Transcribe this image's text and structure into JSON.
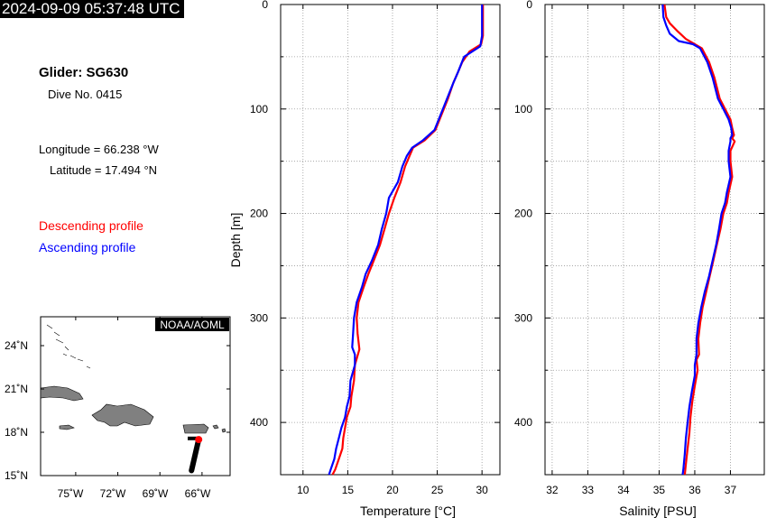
{
  "header": {
    "timestamp": "2024-09-09 05:37:48 UTC"
  },
  "info": {
    "glider": "Glider: SG630",
    "dive": "Dive No. 0415",
    "longitude": "Longitude = 66.238 °W",
    "latitude": "Latitude = 17.494 °N"
  },
  "legend": {
    "descending": "Descending profile",
    "ascending": "Ascending profile",
    "descending_color": "#ff0000",
    "ascending_color": "#0000ff"
  },
  "map": {
    "badge": "NOAA/AOML",
    "lat_labels": [
      "24˚N",
      "21˚N",
      "18˚N",
      "15˚N"
    ],
    "lon_labels": [
      "75˚W",
      "72˚W",
      "69˚W",
      "66˚W"
    ],
    "lat_values": [
      24,
      21,
      18,
      15
    ],
    "lon_values": [
      -75,
      -72,
      -69,
      -66
    ],
    "extent": {
      "lon": [
        -77.5,
        -64
      ],
      "lat": [
        15,
        26
      ]
    },
    "glider_position": {
      "lon": -66.238,
      "lat": 17.494
    },
    "track": [
      {
        "lon": -66.25,
        "lat": 17.45
      },
      {
        "lon": -66.75,
        "lat": 15.35
      }
    ],
    "land_color": "#808080"
  },
  "chart_data": [
    {
      "type": "line",
      "xlabel": "Temperature [°C]",
      "ylabel": "Depth [m]",
      "xlim": [
        7.5,
        32
      ],
      "ylim": [
        450,
        0
      ],
      "xticks": [
        10,
        15,
        20,
        25,
        30
      ],
      "yticks": [
        0,
        100,
        200,
        300,
        400
      ],
      "grid": true,
      "series": [
        {
          "name": "Descending profile",
          "color": "#ff0000",
          "points": [
            [
              30.1,
              0
            ],
            [
              30.1,
              30
            ],
            [
              29.9,
              38
            ],
            [
              28.6,
              45
            ],
            [
              27.8,
              55
            ],
            [
              27.3,
              65
            ],
            [
              26.8,
              75
            ],
            [
              26.2,
              90
            ],
            [
              25.5,
              105
            ],
            [
              24.8,
              120
            ],
            [
              23.6,
              130
            ],
            [
              22.3,
              137
            ],
            [
              21.9,
              145
            ],
            [
              21.4,
              155
            ],
            [
              20.9,
              170
            ],
            [
              20.2,
              185
            ],
            [
              19.6,
              200
            ],
            [
              19.1,
              215
            ],
            [
              18.6,
              230
            ],
            [
              17.9,
              245
            ],
            [
              17.3,
              258
            ],
            [
              16.8,
              270
            ],
            [
              16.2,
              285
            ],
            [
              16.0,
              300
            ],
            [
              16.1,
              315
            ],
            [
              16.3,
              330
            ],
            [
              15.8,
              345
            ],
            [
              15.7,
              360
            ],
            [
              15.4,
              375
            ],
            [
              15.3,
              385
            ],
            [
              14.9,
              395
            ],
            [
              14.7,
              405
            ],
            [
              14.5,
              415
            ],
            [
              14.4,
              425
            ],
            [
              14.0,
              435
            ],
            [
              13.6,
              445
            ],
            [
              13.3,
              450
            ]
          ]
        },
        {
          "name": "Ascending profile",
          "color": "#0000ff",
          "points": [
            [
              30.0,
              0
            ],
            [
              30.0,
              30
            ],
            [
              29.8,
              40
            ],
            [
              28.0,
              50
            ],
            [
              27.3,
              65
            ],
            [
              26.8,
              75
            ],
            [
              26.1,
              90
            ],
            [
              25.4,
              105
            ],
            [
              24.7,
              120
            ],
            [
              23.4,
              130
            ],
            [
              22.2,
              137
            ],
            [
              21.6,
              145
            ],
            [
              21.1,
              155
            ],
            [
              20.6,
              170
            ],
            [
              19.6,
              185
            ],
            [
              19.3,
              200
            ],
            [
              18.8,
              215
            ],
            [
              18.4,
              230
            ],
            [
              17.7,
              245
            ],
            [
              17.0,
              258
            ],
            [
              16.6,
              270
            ],
            [
              16.0,
              285
            ],
            [
              15.7,
              300
            ],
            [
              15.6,
              315
            ],
            [
              15.5,
              328
            ],
            [
              15.8,
              335
            ],
            [
              15.8,
              345
            ],
            [
              15.3,
              360
            ],
            [
              15.2,
              375
            ],
            [
              14.9,
              385
            ],
            [
              14.7,
              395
            ],
            [
              14.3,
              405
            ],
            [
              14.0,
              415
            ],
            [
              13.7,
              425
            ],
            [
              13.5,
              435
            ],
            [
              13.1,
              445
            ],
            [
              12.9,
              450
            ]
          ]
        }
      ]
    },
    {
      "type": "line",
      "xlabel": "Salinity [PSU]",
      "ylabel": "",
      "xlim": [
        31.8,
        37.95
      ],
      "ylim": [
        450,
        0
      ],
      "xticks": [
        32,
        33,
        34,
        35,
        36,
        37
      ],
      "yticks": [
        0,
        100,
        200,
        300,
        400
      ],
      "grid": true,
      "series": [
        {
          "name": "Descending profile",
          "color": "#ff0000",
          "points": [
            [
              35.15,
              0
            ],
            [
              35.2,
              12
            ],
            [
              35.3,
              18
            ],
            [
              35.5,
              25
            ],
            [
              35.75,
              33
            ],
            [
              36.0,
              38
            ],
            [
              36.2,
              42
            ],
            [
              36.4,
              55
            ],
            [
              36.55,
              70
            ],
            [
              36.7,
              90
            ],
            [
              36.85,
              100
            ],
            [
              37.0,
              110
            ],
            [
              37.05,
              118
            ],
            [
              37.1,
              125
            ],
            [
              37.05,
              128
            ],
            [
              37.12,
              131
            ],
            [
              37.0,
              140
            ],
            [
              37.0,
              150
            ],
            [
              37.05,
              165
            ],
            [
              36.95,
              180
            ],
            [
              36.9,
              190
            ],
            [
              36.8,
              200
            ],
            [
              36.72,
              215
            ],
            [
              36.62,
              230
            ],
            [
              36.52,
              245
            ],
            [
              36.42,
              260
            ],
            [
              36.32,
              275
            ],
            [
              36.22,
              290
            ],
            [
              36.15,
              305
            ],
            [
              36.1,
              320
            ],
            [
              36.12,
              335
            ],
            [
              36.05,
              340
            ],
            [
              36.08,
              350
            ],
            [
              36.0,
              365
            ],
            [
              35.93,
              380
            ],
            [
              35.88,
              395
            ],
            [
              35.85,
              410
            ],
            [
              35.8,
              425
            ],
            [
              35.75,
              440
            ],
            [
              35.72,
              450
            ]
          ]
        },
        {
          "name": "Ascending profile",
          "color": "#0000ff",
          "points": [
            [
              35.1,
              0
            ],
            [
              35.12,
              12
            ],
            [
              35.2,
              20
            ],
            [
              35.3,
              28
            ],
            [
              35.55,
              35
            ],
            [
              35.95,
              38
            ],
            [
              36.15,
              42
            ],
            [
              36.35,
              55
            ],
            [
              36.5,
              70
            ],
            [
              36.65,
              90
            ],
            [
              36.8,
              100
            ],
            [
              36.95,
              110
            ],
            [
              37.02,
              118
            ],
            [
              37.05,
              125
            ],
            [
              37.0,
              128
            ],
            [
              37.0,
              131
            ],
            [
              36.95,
              140
            ],
            [
              36.95,
              150
            ],
            [
              37.0,
              165
            ],
            [
              36.9,
              180
            ],
            [
              36.85,
              190
            ],
            [
              36.75,
              200
            ],
            [
              36.68,
              215
            ],
            [
              36.6,
              230
            ],
            [
              36.5,
              245
            ],
            [
              36.4,
              260
            ],
            [
              36.28,
              275
            ],
            [
              36.18,
              290
            ],
            [
              36.1,
              305
            ],
            [
              36.05,
              320
            ],
            [
              36.05,
              335
            ],
            [
              36.0,
              345
            ],
            [
              36.0,
              355
            ],
            [
              35.92,
              370
            ],
            [
              35.85,
              385
            ],
            [
              35.8,
              400
            ],
            [
              35.75,
              415
            ],
            [
              35.72,
              430
            ],
            [
              35.68,
              445
            ],
            [
              35.66,
              450
            ]
          ]
        }
      ]
    }
  ]
}
